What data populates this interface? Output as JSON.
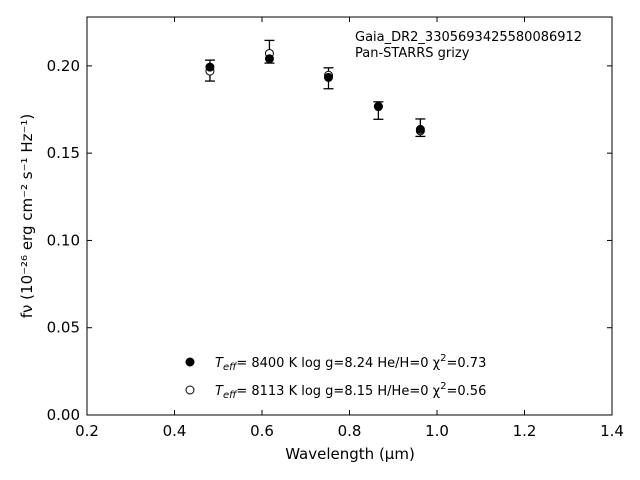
{
  "chart_data": {
    "type": "scatter",
    "annotation": [
      "Gaia_DR2_3305693425580086912",
      "Pan-STARRS grizy"
    ],
    "xlabel": "Wavelength (μm)",
    "ylabel": "fν (10⁻²⁶ erg cm⁻² s⁻¹ Hz⁻¹)",
    "xlim": [
      0.2,
      1.4
    ],
    "ylim": [
      0.0,
      0.228
    ],
    "xticks": [
      0.2,
      0.4,
      0.6,
      0.8,
      1.0,
      1.2,
      1.4
    ],
    "xtick_labels": [
      "0.2",
      "0.4",
      "0.6",
      "0.8",
      "1.0",
      "1.2",
      "1.4"
    ],
    "yticks": [
      0.0,
      0.05,
      0.1,
      0.15,
      0.2
    ],
    "ytick_labels": [
      "0.00",
      "0.05",
      "0.10",
      "0.15",
      "0.20"
    ],
    "grid": false,
    "legend_position": "bottom-center",
    "observed": {
      "x": [
        0.481,
        0.617,
        0.752,
        0.866,
        0.962
      ],
      "y": [
        0.1973,
        0.2081,
        0.1929,
        0.1744,
        0.1646
      ],
      "yerr": [
        0.006,
        0.0065,
        0.006,
        0.005,
        0.005
      ]
    },
    "series": [
      {
        "marker": "filled-circle",
        "legend": {
          "prefix": "T",
          "sub": "eff",
          "rest": "=  8400 K  log g=8.24  He/H=0  χ",
          "sup": "2",
          "tail": "=0.73"
        },
        "x": [
          0.481,
          0.617,
          0.752,
          0.866,
          0.962
        ],
        "y": [
          0.1993,
          0.2041,
          0.1934,
          0.1767,
          0.1636
        ]
      },
      {
        "marker": "open-circle",
        "legend": {
          "prefix": "T",
          "sub": "eff",
          "rest": "=  8113 K  log g=8.15  H/He=0  χ",
          "sup": "2",
          "tail": "=0.56"
        },
        "x": [
          0.481,
          0.617,
          0.752,
          0.866,
          0.962
        ],
        "y": [
          0.197,
          0.2071,
          0.1946,
          0.1767,
          0.1628
        ]
      }
    ],
    "colors": {
      "marker": "#000000",
      "open_fill": "#ffffff"
    }
  }
}
